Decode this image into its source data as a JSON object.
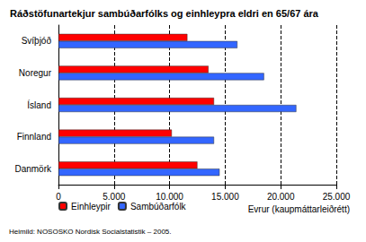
{
  "chart_data": {
    "type": "bar",
    "orientation": "horizontal",
    "title": "Ráðstöfunartekjur sambúðarfólks og einhleypra eldri en 65/67 ára",
    "xlabel": "Evrur (kaupmáttarleiðrétt)",
    "annotations": [
      "Heimild: NOSOSKO Nordisk Socialstatistik – 2005."
    ],
    "categories": [
      "Danmörk",
      "Finnland",
      "Ísland",
      "Noregur",
      "Svíþjóð"
    ],
    "series": [
      {
        "name": "Einhleypir",
        "color": "#ff0000",
        "values": [
          12500,
          10200,
          14000,
          13500,
          11600
        ]
      },
      {
        "name": "Sambúðarfólk",
        "color": "#3366ff",
        "values": [
          14500,
          14000,
          21400,
          18500,
          16100
        ]
      }
    ],
    "xlim": [
      0,
      25000
    ],
    "xticks": [
      0,
      {
        "value": 5000,
        "label": "5.000"
      },
      {
        "value": 10000,
        "label": "10.000"
      },
      {
        "value": 15000,
        "label": "15.000"
      },
      {
        "value": 20000,
        "label": "20.000"
      },
      {
        "value": 25000,
        "label": "25.000"
      }
    ],
    "grid": true,
    "legend": "bottom left"
  }
}
